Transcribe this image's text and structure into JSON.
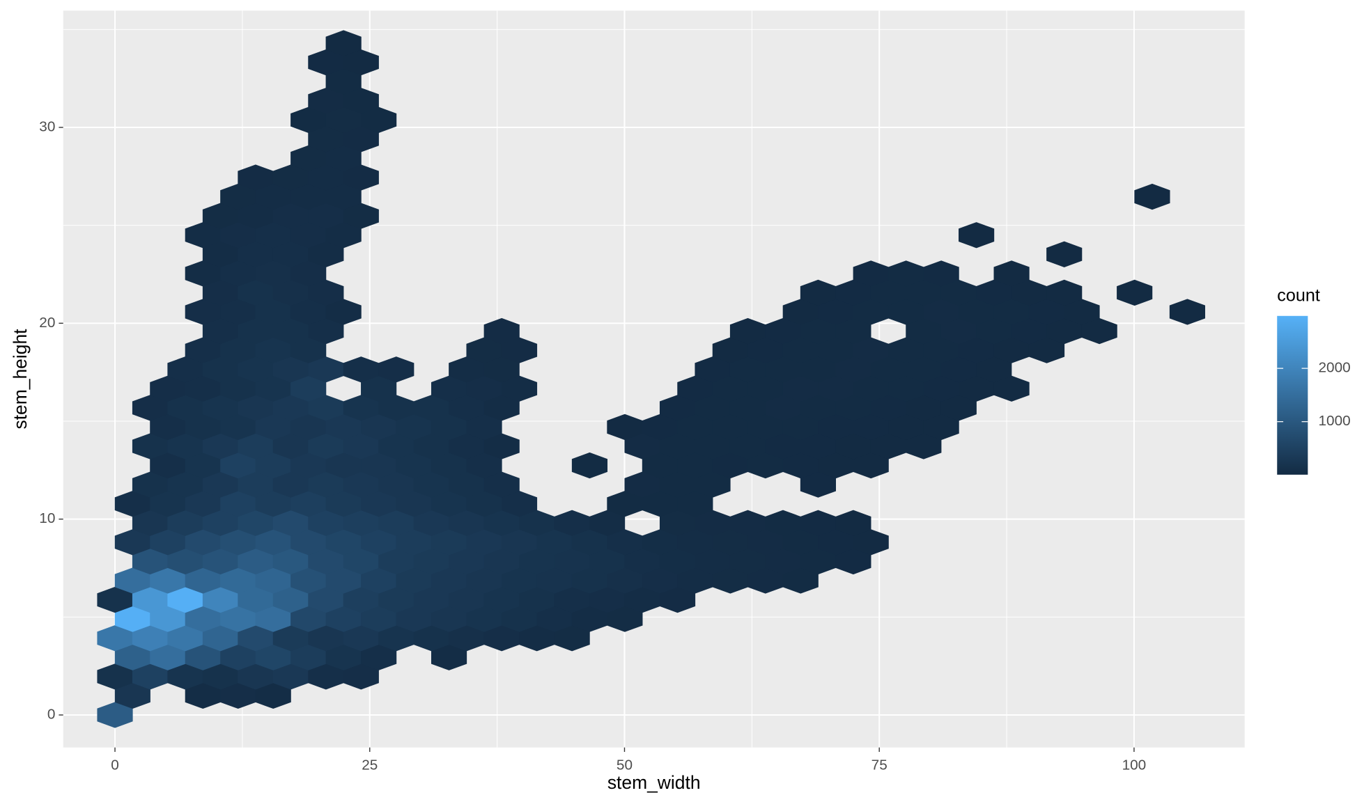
{
  "chart_data": {
    "type": "hexbin",
    "x_label": "stem_width",
    "y_label": "stem_height",
    "legend_title": "count",
    "xlim": [
      -5.08,
      110.85
    ],
    "ylim": [
      -1.66,
      35.96
    ],
    "xticks": [
      0,
      25,
      50,
      75,
      100
    ],
    "yticks": [
      0,
      10,
      20,
      30
    ],
    "xminor": [
      12.5,
      37.5,
      62.5,
      87.5
    ],
    "yminor": [
      5,
      15,
      25,
      35
    ],
    "grid": true,
    "panel_color": "#ebebeb",
    "color_low": "#132b43",
    "color_high": "#56b1f7",
    "color_lim": [
      5,
      2984
    ],
    "color_ticks": [
      1000,
      2000
    ],
    "legend_position": "right",
    "rows": [
      {
        "y": 0,
        "x": [
          0
        ],
        "counts": [
          1100
        ]
      },
      {
        "y": 0.98,
        "x": [
          1.73,
          8.63,
          12.08,
          15.53
        ],
        "counts": [
          250,
          60,
          80,
          60
        ]
      },
      {
        "y": 1.96,
        "x": [
          0,
          3.45,
          6.9,
          10.35,
          13.8,
          17.25,
          20.7,
          24.15
        ],
        "counts": [
          150,
          500,
          200,
          150,
          250,
          300,
          100,
          80
        ]
      },
      {
        "y": 2.94,
        "x": [
          1.73,
          5.18,
          8.63,
          12.08,
          15.53,
          18.98,
          22.43,
          25.88,
          32.78
        ],
        "counts": [
          1200,
          1500,
          900,
          500,
          600,
          400,
          200,
          100,
          60
        ]
      },
      {
        "y": 3.92,
        "x": [
          0,
          3.45,
          6.9,
          10.35,
          13.8,
          17.25,
          20.7,
          24.15,
          27.6,
          31.05,
          34.5,
          37.95,
          41.4,
          44.85
        ],
        "counts": [
          1700,
          1900,
          1700,
          1300,
          700,
          350,
          250,
          300,
          200,
          150,
          120,
          80,
          60,
          40
        ]
      },
      {
        "y": 4.9,
        "x": [
          1.73,
          5.18,
          8.63,
          12.08,
          15.53,
          18.98,
          22.43,
          25.88,
          29.33,
          32.78,
          36.23,
          39.68,
          43.13,
          46.58,
          50.03
        ],
        "counts": [
          2950,
          2400,
          1500,
          1600,
          1500,
          650,
          500,
          400,
          300,
          250,
          200,
          150,
          100,
          60,
          40
        ]
      },
      {
        "y": 5.88,
        "x": [
          0,
          3.45,
          6.9,
          10.35,
          13.8,
          17.25,
          20.7,
          24.15,
          27.6,
          31.05,
          34.5,
          37.95,
          41.4,
          44.85,
          48.3,
          51.75,
          55.2
        ],
        "counts": [
          150,
          2400,
          2950,
          2000,
          1400,
          1200,
          700,
          450,
          350,
          300,
          250,
          200,
          150,
          100,
          80,
          50,
          30
        ]
      },
      {
        "y": 6.86,
        "x": [
          1.73,
          5.18,
          8.63,
          12.08,
          15.53,
          18.98,
          22.43,
          25.88,
          29.33,
          32.78,
          36.23,
          39.68,
          43.13,
          46.58,
          50.03,
          53.48,
          56.93,
          60.38,
          63.83,
          67.28
        ],
        "counts": [
          1500,
          1700,
          1300,
          1400,
          1300,
          850,
          700,
          500,
          350,
          300,
          250,
          200,
          180,
          150,
          120,
          80,
          60,
          40,
          30,
          20
        ]
      },
      {
        "y": 7.84,
        "x": [
          3.45,
          6.9,
          10.35,
          13.8,
          17.25,
          20.7,
          24.15,
          27.6,
          31.05,
          34.5,
          37.95,
          41.4,
          44.85,
          48.3,
          51.75,
          55.2,
          58.65,
          62.1,
          65.55,
          69,
          72.45
        ],
        "counts": [
          900,
          800,
          900,
          1100,
          1000,
          700,
          600,
          400,
          350,
          300,
          250,
          200,
          180,
          150,
          100,
          70,
          50,
          40,
          30,
          20,
          15
        ]
      },
      {
        "y": 8.82,
        "x": [
          1.73,
          5.18,
          8.63,
          12.08,
          15.53,
          18.98,
          22.43,
          25.88,
          29.33,
          32.78,
          36.23,
          39.68,
          43.13,
          46.58,
          50.03,
          53.48,
          56.93,
          60.38,
          63.83,
          67.28,
          70.73,
          74.18
        ],
        "counts": [
          300,
          500,
          700,
          800,
          900,
          700,
          600,
          500,
          400,
          350,
          300,
          250,
          200,
          150,
          100,
          70,
          50,
          40,
          30,
          20,
          15,
          10
        ]
      },
      {
        "y": 9.8,
        "x": [
          3.45,
          6.9,
          10.35,
          13.8,
          17.25,
          20.7,
          24.15,
          27.6,
          31.05,
          34.5,
          37.95,
          41.4,
          44.85,
          48.3,
          55.2,
          58.65,
          62.1,
          65.55,
          69,
          72.45
        ],
        "counts": [
          250,
          400,
          500,
          600,
          700,
          500,
          450,
          400,
          300,
          250,
          200,
          150,
          100,
          60,
          40,
          30,
          30,
          20,
          15,
          10
        ]
      },
      {
        "y": 10.78,
        "x": [
          1.73,
          5.18,
          8.63,
          12.08,
          15.53,
          18.98,
          22.43,
          25.88,
          29.33,
          32.78,
          36.23,
          39.68,
          50.03,
          53.48,
          56.93
        ],
        "counts": [
          100,
          200,
          300,
          500,
          400,
          450,
          350,
          300,
          250,
          200,
          150,
          100,
          20,
          20,
          20
        ]
      },
      {
        "y": 11.76,
        "x": [
          3.45,
          6.9,
          10.35,
          13.8,
          17.25,
          20.7,
          24.15,
          27.6,
          31.05,
          34.5,
          37.95,
          51.75,
          55.2,
          58.65,
          69
        ],
        "counts": [
          150,
          200,
          300,
          400,
          300,
          350,
          300,
          250,
          200,
          150,
          100,
          30,
          20,
          20,
          15
        ]
      },
      {
        "y": 12.74,
        "x": [
          5.18,
          8.63,
          12.08,
          15.53,
          18.98,
          22.43,
          25.88,
          29.33,
          32.78,
          36.23,
          46.58,
          53.48,
          56.93,
          60.38,
          63.83,
          67.28,
          70.73,
          74.18
        ],
        "counts": [
          100,
          200,
          500,
          400,
          300,
          250,
          250,
          200,
          150,
          100,
          20,
          20,
          20,
          15,
          20,
          15,
          10,
          10
        ]
      },
      {
        "y": 13.72,
        "x": [
          3.45,
          6.9,
          10.35,
          13.8,
          17.25,
          20.7,
          24.15,
          27.6,
          31.05,
          34.5,
          37.95,
          51.75,
          55.2,
          58.65,
          62.1,
          65.55,
          69,
          72.45,
          75.9,
          79.35
        ],
        "counts": [
          150,
          200,
          300,
          400,
          250,
          350,
          300,
          200,
          150,
          100,
          60,
          30,
          20,
          20,
          20,
          15,
          15,
          10,
          10,
          10
        ]
      },
      {
        "y": 14.7,
        "x": [
          5.18,
          8.63,
          12.08,
          15.53,
          18.98,
          22.43,
          25.88,
          29.33,
          32.78,
          36.23,
          50.03,
          53.48,
          56.93,
          60.38,
          63.83,
          67.28,
          70.73,
          74.18,
          77.63,
          81.08
        ],
        "counts": [
          100,
          150,
          200,
          300,
          250,
          300,
          250,
          200,
          150,
          100,
          10,
          15,
          20,
          20,
          25,
          20,
          15,
          15,
          10,
          10
        ]
      },
      {
        "y": 15.68,
        "x": [
          3.45,
          6.9,
          10.35,
          13.8,
          17.25,
          20.7,
          24.15,
          27.6,
          31.05,
          34.5,
          37.95,
          55.2,
          58.65,
          62.1,
          65.55,
          69,
          72.45,
          75.9,
          79.35,
          82.8
        ],
        "counts": [
          80,
          150,
          200,
          250,
          300,
          350,
          200,
          150,
          150,
          100,
          50,
          15,
          20,
          25,
          30,
          25,
          20,
          15,
          10,
          10
        ]
      },
      {
        "y": 16.66,
        "x": [
          5.18,
          8.63,
          12.08,
          15.53,
          18.98,
          25.88,
          32.78,
          36.23,
          39.68,
          56.93,
          60.38,
          63.83,
          67.28,
          70.73,
          74.18,
          77.63,
          81.08,
          84.53,
          87.98
        ],
        "counts": [
          80,
          100,
          150,
          200,
          400,
          150,
          100,
          80,
          50,
          15,
          20,
          25,
          30,
          30,
          25,
          20,
          15,
          10,
          10
        ]
      },
      {
        "y": 17.64,
        "x": [
          6.9,
          10.35,
          13.8,
          17.25,
          20.7,
          24.15,
          27.6,
          34.5,
          37.95,
          58.65,
          62.1,
          65.55,
          69,
          72.45,
          75.9,
          79.35,
          82.8,
          86.25
        ],
        "counts": [
          100,
          150,
          200,
          250,
          300,
          100,
          80,
          60,
          40,
          15,
          20,
          25,
          25,
          30,
          20,
          20,
          15,
          10
        ]
      },
      {
        "y": 18.62,
        "x": [
          8.63,
          12.08,
          15.53,
          18.98,
          36.23,
          39.68,
          60.38,
          63.83,
          67.28,
          70.73,
          74.18,
          77.63,
          81.08,
          84.53,
          87.98,
          91.43
        ],
        "counts": [
          100,
          150,
          200,
          150,
          40,
          30,
          10,
          15,
          20,
          25,
          30,
          25,
          20,
          15,
          10,
          10
        ]
      },
      {
        "y": 19.6,
        "x": [
          10.35,
          13.8,
          17.25,
          20.7,
          37.95,
          62.1,
          65.55,
          69,
          72.45,
          79.35,
          82.8,
          86.25,
          89.7,
          93.15,
          96.6
        ],
        "counts": [
          100,
          150,
          150,
          100,
          30,
          10,
          15,
          20,
          20,
          25,
          30,
          20,
          15,
          10,
          10
        ]
      },
      {
        "y": 20.58,
        "x": [
          8.63,
          12.08,
          15.53,
          18.98,
          22.43,
          67.28,
          70.73,
          74.18,
          77.63,
          81.08,
          84.53,
          87.98,
          91.43,
          94.88,
          105.23
        ],
        "counts": [
          80,
          100,
          150,
          100,
          60,
          10,
          15,
          20,
          25,
          30,
          25,
          20,
          15,
          10,
          5
        ]
      },
      {
        "y": 21.56,
        "x": [
          10.35,
          13.8,
          17.25,
          20.7,
          69,
          72.45,
          75.9,
          79.35,
          82.8,
          86.25,
          89.7,
          93.15,
          100.05
        ],
        "counts": [
          80,
          150,
          120,
          80,
          10,
          15,
          20,
          25,
          20,
          15,
          10,
          10,
          5
        ]
      },
      {
        "y": 22.54,
        "x": [
          8.63,
          12.08,
          15.53,
          18.98,
          74.18,
          77.63,
          81.08,
          87.98
        ],
        "counts": [
          60,
          100,
          120,
          80,
          15,
          20,
          15,
          10
        ]
      },
      {
        "y": 23.52,
        "x": [
          10.35,
          13.8,
          17.25,
          20.7,
          93.15
        ],
        "counts": [
          60,
          100,
          100,
          60,
          5
        ]
      },
      {
        "y": 24.5,
        "x": [
          8.63,
          12.08,
          15.53,
          18.98,
          22.43,
          84.53
        ],
        "counts": [
          50,
          80,
          100,
          80,
          50,
          5
        ]
      },
      {
        "y": 25.48,
        "x": [
          10.35,
          13.8,
          17.25,
          20.7,
          24.15
        ],
        "counts": [
          40,
          60,
          80,
          80,
          40
        ]
      },
      {
        "y": 26.46,
        "x": [
          12.08,
          15.53,
          18.98,
          22.43,
          101.78
        ],
        "counts": [
          40,
          50,
          60,
          50,
          5
        ]
      },
      {
        "y": 27.44,
        "x": [
          13.8,
          17.25,
          20.7,
          24.15
        ],
        "counts": [
          30,
          40,
          50,
          30
        ]
      },
      {
        "y": 28.42,
        "x": [
          18.98,
          22.43
        ],
        "counts": [
          40,
          50
        ]
      },
      {
        "y": 29.4,
        "x": [
          20.7,
          24.15
        ],
        "counts": [
          40,
          30
        ]
      },
      {
        "y": 30.38,
        "x": [
          18.98,
          22.43,
          25.88
        ],
        "counts": [
          20,
          40,
          20
        ]
      },
      {
        "y": 31.36,
        "x": [
          20.7,
          24.15
        ],
        "counts": [
          30,
          20
        ]
      },
      {
        "y": 32.34,
        "x": [
          22.43
        ],
        "counts": [
          20
        ]
      },
      {
        "y": 33.32,
        "x": [
          20.7,
          24.15
        ],
        "counts": [
          15,
          10
        ]
      },
      {
        "y": 34.3,
        "x": [
          22.43
        ],
        "counts": [
          10
        ]
      }
    ]
  }
}
